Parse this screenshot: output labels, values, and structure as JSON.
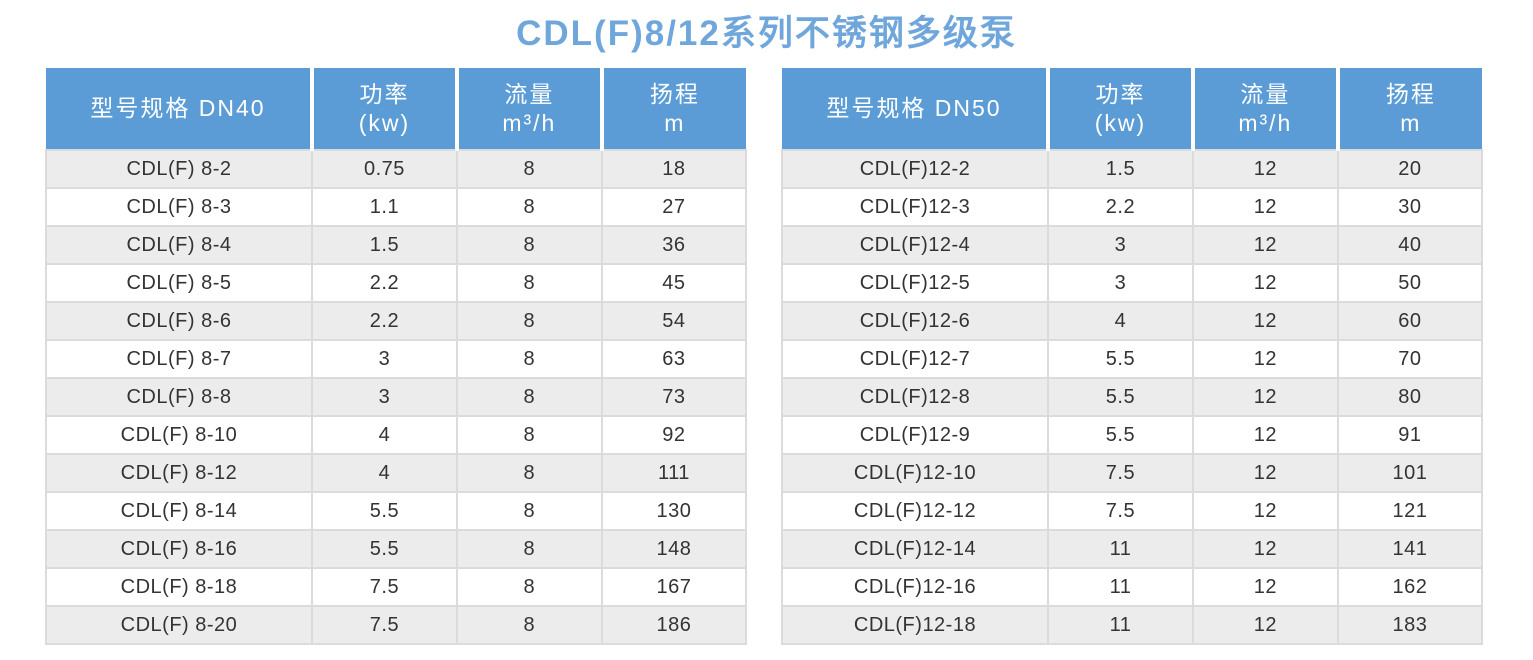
{
  "title": "CDL(F)8/12系列不锈钢多级泵",
  "colors": {
    "title_text": "#6fa6db",
    "header_bg": "#5b9cd6",
    "header_text": "#ffffff",
    "row_alt_bg": "#ececec",
    "row_bg": "#ffffff",
    "body_text": "#333333",
    "cell_border": "#dbdbdb"
  },
  "tables": [
    {
      "name": "DN40",
      "columns": {
        "model": "型号规格 DN40",
        "power_line1": "功率",
        "power_line2": "(kw)",
        "flow_line1": "流量",
        "flow_line2": "m³/h",
        "head_line1": "扬程",
        "head_line2": "m"
      },
      "rows": [
        [
          "CDL(F) 8-2",
          "0.75",
          "8",
          "18"
        ],
        [
          "CDL(F) 8-3",
          "1.1",
          "8",
          "27"
        ],
        [
          "CDL(F) 8-4",
          "1.5",
          "8",
          "36"
        ],
        [
          "CDL(F) 8-5",
          "2.2",
          "8",
          "45"
        ],
        [
          "CDL(F) 8-6",
          "2.2",
          "8",
          "54"
        ],
        [
          "CDL(F) 8-7",
          "3",
          "8",
          "63"
        ],
        [
          "CDL(F) 8-8",
          "3",
          "8",
          "73"
        ],
        [
          "CDL(F) 8-10",
          "4",
          "8",
          "92"
        ],
        [
          "CDL(F) 8-12",
          "4",
          "8",
          "111"
        ],
        [
          "CDL(F) 8-14",
          "5.5",
          "8",
          "130"
        ],
        [
          "CDL(F) 8-16",
          "5.5",
          "8",
          "148"
        ],
        [
          "CDL(F) 8-18",
          "7.5",
          "8",
          "167"
        ],
        [
          "CDL(F) 8-20",
          "7.5",
          "8",
          "186"
        ]
      ]
    },
    {
      "name": "DN50",
      "columns": {
        "model": "型号规格 DN50",
        "power_line1": "功率",
        "power_line2": "(kw)",
        "flow_line1": "流量",
        "flow_line2": "m³/h",
        "head_line1": "扬程",
        "head_line2": "m"
      },
      "rows": [
        [
          "CDL(F)12-2",
          "1.5",
          "12",
          "20"
        ],
        [
          "CDL(F)12-3",
          "2.2",
          "12",
          "30"
        ],
        [
          "CDL(F)12-4",
          "3",
          "12",
          "40"
        ],
        [
          "CDL(F)12-5",
          "3",
          "12",
          "50"
        ],
        [
          "CDL(F)12-6",
          "4",
          "12",
          "60"
        ],
        [
          "CDL(F)12-7",
          "5.5",
          "12",
          "70"
        ],
        [
          "CDL(F)12-8",
          "5.5",
          "12",
          "80"
        ],
        [
          "CDL(F)12-9",
          "5.5",
          "12",
          "91"
        ],
        [
          "CDL(F)12-10",
          "7.5",
          "12",
          "101"
        ],
        [
          "CDL(F)12-12",
          "7.5",
          "12",
          "121"
        ],
        [
          "CDL(F)12-14",
          "11",
          "12",
          "141"
        ],
        [
          "CDL(F)12-16",
          "11",
          "12",
          "162"
        ],
        [
          "CDL(F)12-18",
          "11",
          "12",
          "183"
        ]
      ]
    }
  ]
}
